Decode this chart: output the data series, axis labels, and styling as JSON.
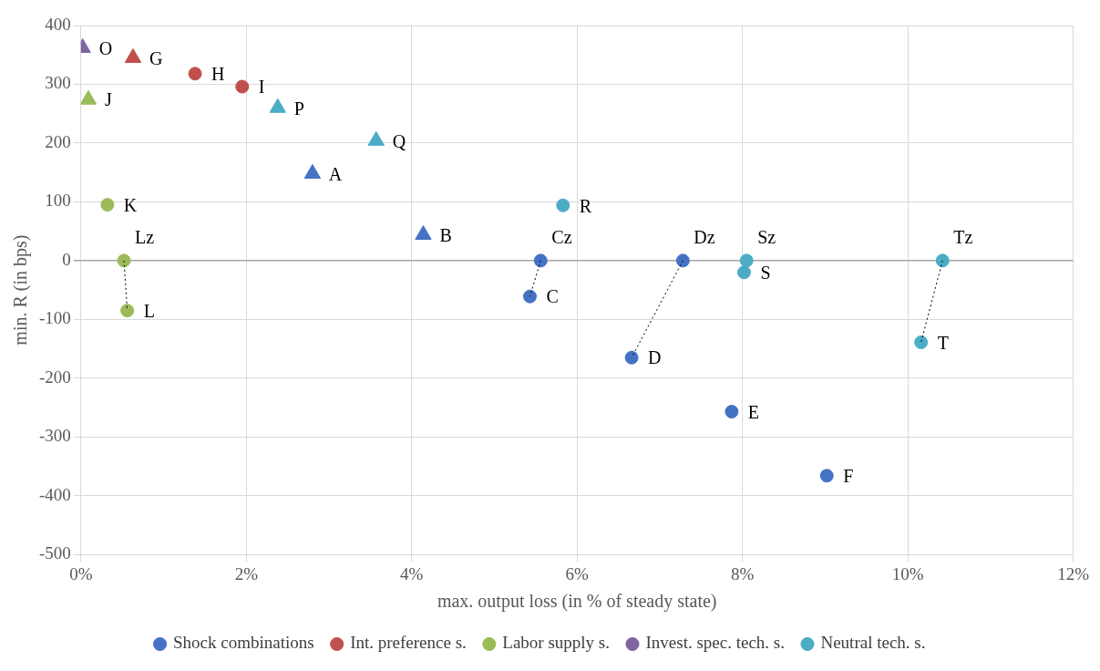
{
  "chart_data": {
    "type": "scatter",
    "xlabel": "max. output loss (in % of steady state)",
    "ylabel": "min. R (in bps)",
    "xlim": [
      0,
      12
    ],
    "xticks": [
      {
        "value": 0,
        "label": "0%"
      },
      {
        "value": 2,
        "label": "2%"
      },
      {
        "value": 4,
        "label": "4%"
      },
      {
        "value": 6,
        "label": "6%"
      },
      {
        "value": 8,
        "label": "8%"
      },
      {
        "value": 10,
        "label": "10%"
      },
      {
        "value": 12,
        "label": "12%"
      }
    ],
    "ylim": [
      -500,
      400
    ],
    "yticks": [
      -500,
      -400,
      -300,
      -200,
      -100,
      0,
      100,
      200,
      300,
      400
    ],
    "grid": true,
    "legend": "bottom",
    "series": [
      {
        "name": "Shock combinations",
        "color": "#4472c4",
        "marker": "circle",
        "x": [
          5.43,
          5.56,
          6.66,
          7.28,
          7.87,
          9.02
        ],
        "values": [
          -61,
          0,
          -165,
          0,
          -257,
          -366
        ]
      },
      {
        "color": "#4472c4",
        "marker": "triangle",
        "x": [
          2.8,
          4.14
        ],
        "values": [
          148,
          44
        ]
      },
      {
        "name": "Int. preference s.",
        "color": "#c0504d",
        "marker": "circle",
        "x": [
          1.38,
          1.95
        ],
        "values": [
          318,
          296
        ]
      },
      {
        "color": "#c0504d",
        "marker": "triangle",
        "x": [
          0.63
        ],
        "values": [
          345
        ]
      },
      {
        "name": "Labor supply s.",
        "color": "#9bbb59",
        "marker": "circle",
        "x": [
          0.32,
          0.52,
          0.56
        ],
        "values": [
          95,
          0,
          -85
        ]
      },
      {
        "color": "#9bbb59",
        "marker": "triangle",
        "x": [
          0.09
        ],
        "values": [
          274
        ]
      },
      {
        "name": "Invest. spec. tech. s.",
        "color": "#8064a2",
        "marker": "triangle",
        "x": [
          0.02
        ],
        "values": [
          362
        ]
      },
      {
        "name": "Neutral tech. s.",
        "color": "#4bacc6",
        "marker": "circle",
        "x": [
          5.83,
          8.05,
          8.02,
          10.42,
          10.16
        ],
        "values": [
          94,
          0,
          -20,
          0,
          -139
        ]
      },
      {
        "color": "#4bacc6",
        "marker": "triangle",
        "x": [
          2.38,
          3.57
        ],
        "values": [
          260,
          204
        ]
      },
      {
        "type": "line",
        "color": "#000000",
        "marker": "none",
        "line_style": "dotted",
        "x": [
          0.52,
          0.56
        ],
        "values": [
          0,
          -85
        ]
      },
      {
        "type": "line",
        "color": "#000000",
        "marker": "none",
        "line_style": "dotted",
        "x": [
          5.56,
          5.43
        ],
        "values": [
          0,
          -61
        ]
      },
      {
        "type": "line",
        "color": "#000000",
        "marker": "none",
        "line_style": "dotted",
        "x": [
          7.28,
          6.66
        ],
        "values": [
          0,
          -165
        ]
      },
      {
        "type": "line",
        "color": "#000000",
        "marker": "none",
        "line_style": "dotted",
        "x": [
          10.42,
          10.16
        ],
        "values": [
          0,
          -139
        ]
      }
    ],
    "annotations": [
      {
        "text": "O",
        "x": 0.02,
        "y": 362
      },
      {
        "text": "G",
        "x": 0.63,
        "y": 345
      },
      {
        "text": "H",
        "x": 1.38,
        "y": 318
      },
      {
        "text": "I",
        "x": 1.95,
        "y": 296
      },
      {
        "text": "J",
        "x": 0.09,
        "y": 274
      },
      {
        "text": "P",
        "x": 2.38,
        "y": 260
      },
      {
        "text": "Q",
        "x": 3.57,
        "y": 204
      },
      {
        "text": "A",
        "x": 2.8,
        "y": 148
      },
      {
        "text": "K",
        "x": 0.32,
        "y": 95
      },
      {
        "text": "R",
        "x": 5.83,
        "y": 94
      },
      {
        "text": "B",
        "x": 4.14,
        "y": 44
      },
      {
        "text": "Lz",
        "x": 0.52,
        "y": 0
      },
      {
        "text": "Cz",
        "x": 5.56,
        "y": 0
      },
      {
        "text": "Dz",
        "x": 7.28,
        "y": 0
      },
      {
        "text": "Sz",
        "x": 8.05,
        "y": 0
      },
      {
        "text": "Tz",
        "x": 10.42,
        "y": 0
      },
      {
        "text": "L",
        "x": 0.56,
        "y": -85
      },
      {
        "text": "C",
        "x": 5.43,
        "y": -61
      },
      {
        "text": "S",
        "x": 8.02,
        "y": -20
      },
      {
        "text": "D",
        "x": 6.66,
        "y": -165
      },
      {
        "text": "E",
        "x": 7.87,
        "y": -257
      },
      {
        "text": "F",
        "x": 9.02,
        "y": -366
      },
      {
        "text": "T",
        "x": 10.16,
        "y": -139
      }
    ]
  }
}
